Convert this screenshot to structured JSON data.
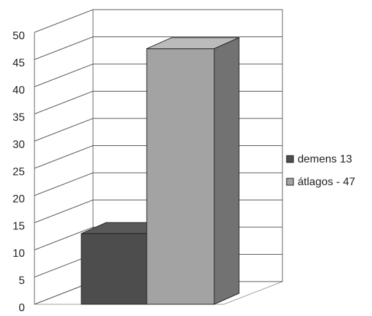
{
  "chart_data": {
    "type": "bar3d",
    "categories": [
      "demens 13",
      "átlagos - 47"
    ],
    "values": [
      13,
      47
    ],
    "colors": [
      "#4d4d4d",
      "#a3a3a3"
    ],
    "ylim": [
      0,
      50
    ],
    "yticks": [
      0,
      5,
      10,
      15,
      20,
      25,
      30,
      35,
      40,
      45,
      50
    ],
    "grid": true,
    "legend": "right"
  }
}
